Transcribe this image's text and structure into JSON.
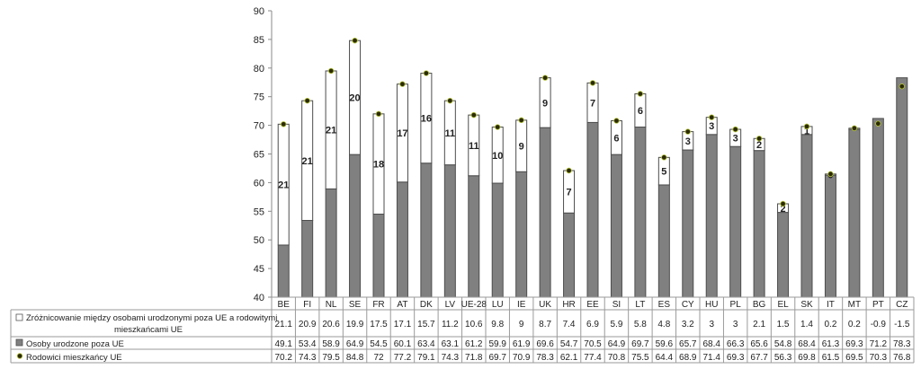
{
  "chart_data": {
    "type": "bar",
    "categories": [
      "BE",
      "FI",
      "NL",
      "SE",
      "FR",
      "AT",
      "DK",
      "LV",
      "UE-28",
      "LU",
      "IE",
      "UK",
      "HR",
      "EE",
      "SI",
      "LT",
      "ES",
      "CY",
      "HU",
      "PL",
      "BG",
      "EL",
      "SK",
      "IT",
      "MT",
      "PT",
      "CZ"
    ],
    "ylim": [
      40,
      90
    ],
    "yticks": [
      40,
      45,
      50,
      55,
      60,
      65,
      70,
      75,
      80,
      85,
      90
    ],
    "series": [
      {
        "name": "Zróżnicowanie między osobami urodzonymi poza UE a rodowitymi mieszkańcami UE",
        "values": [
          21.1,
          20.9,
          20.6,
          19.9,
          17.5,
          17.1,
          15.7,
          11.2,
          10.6,
          9.8,
          9,
          8.7,
          7.4,
          6.9,
          5.9,
          5.8,
          4.8,
          3.2,
          3,
          3,
          2.1,
          1.5,
          1.4,
          0.2,
          0.2,
          -0.9,
          -1.5
        ],
        "bar_labels": [
          "21",
          "21",
          "21",
          "20",
          "18",
          "17",
          "16",
          "11",
          "11",
          "10",
          "9",
          "9",
          "7",
          "7",
          "6",
          "6",
          "5",
          "3",
          "3",
          "3",
          "2",
          "2",
          "1",
          "0",
          "",
          "",
          ""
        ],
        "color": "#ffffff"
      },
      {
        "name": "Osoby urodzone poza UE",
        "values": [
          49.1,
          53.4,
          58.9,
          64.9,
          54.5,
          60.1,
          63.4,
          63.1,
          61.2,
          59.9,
          61.9,
          69.6,
          54.7,
          70.5,
          64.9,
          69.7,
          59.6,
          65.7,
          68.4,
          66.3,
          65.6,
          54.8,
          68.4,
          61.3,
          69.3,
          71.2,
          78.3
        ],
        "color": "#808080"
      },
      {
        "name": "Rodowici mieszkańcy UE",
        "values": [
          70.2,
          74.3,
          79.5,
          84.8,
          72,
          77.2,
          79.1,
          74.3,
          71.8,
          69.7,
          70.9,
          78.3,
          62.1,
          77.4,
          70.8,
          75.5,
          64.4,
          68.9,
          71.4,
          69.3,
          67.7,
          56.3,
          69.8,
          61.5,
          69.5,
          70.3,
          76.8
        ],
        "marker": "circle",
        "color": "#2b2b00"
      }
    ],
    "table_rows": [
      [
        "21.1",
        "20.9",
        "20.6",
        "19.9",
        "17.5",
        "17.1",
        "15.7",
        "11.2",
        "10.6",
        "9.8",
        "9",
        "8.7",
        "7.4",
        "6.9",
        "5.9",
        "5.8",
        "4.8",
        "3.2",
        "3",
        "3",
        "2.1",
        "1.5",
        "1.4",
        "0.2",
        "0.2",
        "-0.9",
        "-1.5"
      ],
      [
        "49.1",
        "53.4",
        "58.9",
        "64.9",
        "54.5",
        "60.1",
        "63.4",
        "63.1",
        "61.2",
        "59.9",
        "61.9",
        "69.6",
        "54.7",
        "70.5",
        "64.9",
        "69.7",
        "59.6",
        "65.7",
        "68.4",
        "66.3",
        "65.6",
        "54.8",
        "68.4",
        "61.3",
        "69.3",
        "71.2",
        "78.3"
      ],
      [
        "70.2",
        "74.3",
        "79.5",
        "84.8",
        "72",
        "77.2",
        "79.1",
        "74.3",
        "71.8",
        "69.7",
        "70.9",
        "78.3",
        "62.1",
        "77.4",
        "70.8",
        "75.5",
        "64.4",
        "68.9",
        "71.4",
        "69.3",
        "67.7",
        "56.3",
        "69.8",
        "61.5",
        "69.5",
        "70.3",
        "76.8"
      ]
    ],
    "legend_labels": [
      "Zróżnicowanie między osobami urodzonymi poza UE a rodowitymi mieszkańcami UE",
      "Osoby urodzone poza UE",
      "Rodowici mieszkańcy UE"
    ],
    "grid": false,
    "legend": "data-table"
  }
}
